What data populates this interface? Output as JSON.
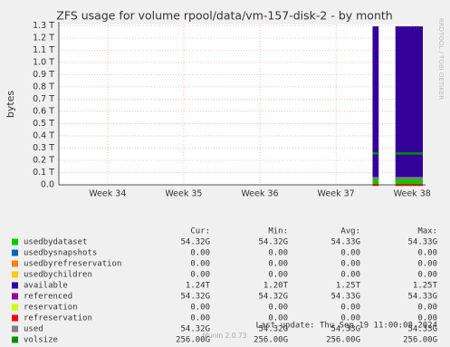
{
  "chart_data": {
    "type": "area",
    "title": "ZFS usage for volume rpool/data/vm-157-disk-2 - by month",
    "y_label": "bytes",
    "side_text": "RRDTOOL / TOBI OETIKER",
    "footer": "Last update: Thu Sep 19 11:00:08 2024",
    "version": "Munin 2.0.73",
    "grid": true,
    "xlim": [
      33.36,
      38.14
    ],
    "xticks": [
      {
        "value": 34,
        "label": "Week 34"
      },
      {
        "value": 35,
        "label": "Week 35"
      },
      {
        "value": 36,
        "label": "Week 36"
      },
      {
        "value": 37,
        "label": "Week 37"
      },
      {
        "value": 38,
        "label": "Week 38"
      }
    ],
    "ylim": [
      0,
      1.31
    ],
    "yticks": [
      {
        "value": 0,
        "label": "0.0"
      },
      {
        "value": 0.1,
        "label": "0.1 T"
      },
      {
        "value": 0.2,
        "label": "0.2 T"
      },
      {
        "value": 0.3,
        "label": "0.3 T"
      },
      {
        "value": 0.4,
        "label": "0.4 T"
      },
      {
        "value": 0.5,
        "label": "0.5 T"
      },
      {
        "value": 0.6,
        "label": "0.6 T"
      },
      {
        "value": 0.7,
        "label": "0.7 T"
      },
      {
        "value": 0.8,
        "label": "0.8 T"
      },
      {
        "value": 0.9,
        "label": "0.9 T"
      },
      {
        "value": 1.0,
        "label": "1.0 T"
      },
      {
        "value": 1.1,
        "label": "1.1 T"
      },
      {
        "value": 1.2,
        "label": "1.2 T"
      },
      {
        "value": 1.3,
        "label": "1.3 T"
      }
    ],
    "stat_headers": [
      "Cur:",
      "Min:",
      "Avg:",
      "Max:"
    ],
    "x": [
      37.48,
      37.56,
      37.67,
      37.78,
      38.14
    ],
    "series": [
      {
        "name": "usedbydataset",
        "color": "#00cc00",
        "style": "area",
        "values": [
          0.05432,
          0.05432,
          null,
          0.05432,
          0.05432
        ],
        "stats": [
          "54.32G",
          "54.32G",
          "54.33G",
          "54.33G"
        ]
      },
      {
        "name": "usedbysnapshots",
        "color": "#0066b3",
        "style": "area",
        "values": [
          0,
          0,
          null,
          0,
          0
        ],
        "stats": [
          "0.00",
          "0.00",
          "0.00",
          "0.00"
        ]
      },
      {
        "name": "usedbyrefreservation",
        "color": "#ff8000",
        "style": "area",
        "values": [
          0,
          0,
          null,
          0,
          0
        ],
        "stats": [
          "0.00",
          "0.00",
          "0.00",
          "0.00"
        ]
      },
      {
        "name": "usedbychildren",
        "color": "#ffcc00",
        "style": "area",
        "values": [
          0,
          0,
          null,
          0,
          0
        ],
        "stats": [
          "0.00",
          "0.00",
          "0.00",
          "0.00"
        ]
      },
      {
        "name": "available",
        "color": "#330099",
        "style": "area",
        "values": [
          1.24,
          1.24,
          null,
          1.24,
          1.24
        ],
        "stats": [
          "1.24T",
          "1.20T",
          "1.25T",
          "1.25T"
        ]
      },
      {
        "name": "referenced",
        "color": "#990099",
        "style": "line",
        "values": [
          0.05432,
          0.05432,
          null,
          0.05432,
          0.05432
        ],
        "stats": [
          "54.32G",
          "54.32G",
          "54.33G",
          "54.33G"
        ]
      },
      {
        "name": "reservation",
        "color": "#ccff00",
        "style": "line",
        "values": [
          0,
          0,
          null,
          0,
          0
        ],
        "stats": [
          "0.00",
          "0.00",
          "0.00",
          "0.00"
        ]
      },
      {
        "name": "refreservation",
        "color": "#ff0000",
        "style": "line",
        "values": [
          0,
          0,
          null,
          0,
          0
        ],
        "stats": [
          "0.00",
          "0.00",
          "0.00",
          "0.00"
        ]
      },
      {
        "name": "used",
        "color": "#808080",
        "style": "line",
        "values": [
          0.05432,
          0.05432,
          null,
          0.05432,
          0.05432
        ],
        "stats": [
          "54.32G",
          "54.32G",
          "54.33G",
          "54.33G"
        ]
      },
      {
        "name": "volsize",
        "color": "#008f00",
        "style": "line",
        "values": [
          0.256,
          0.256,
          null,
          0.256,
          0.256
        ],
        "stats": [
          "256.00G",
          "256.00G",
          "256.00G",
          "256.00G"
        ]
      }
    ]
  }
}
